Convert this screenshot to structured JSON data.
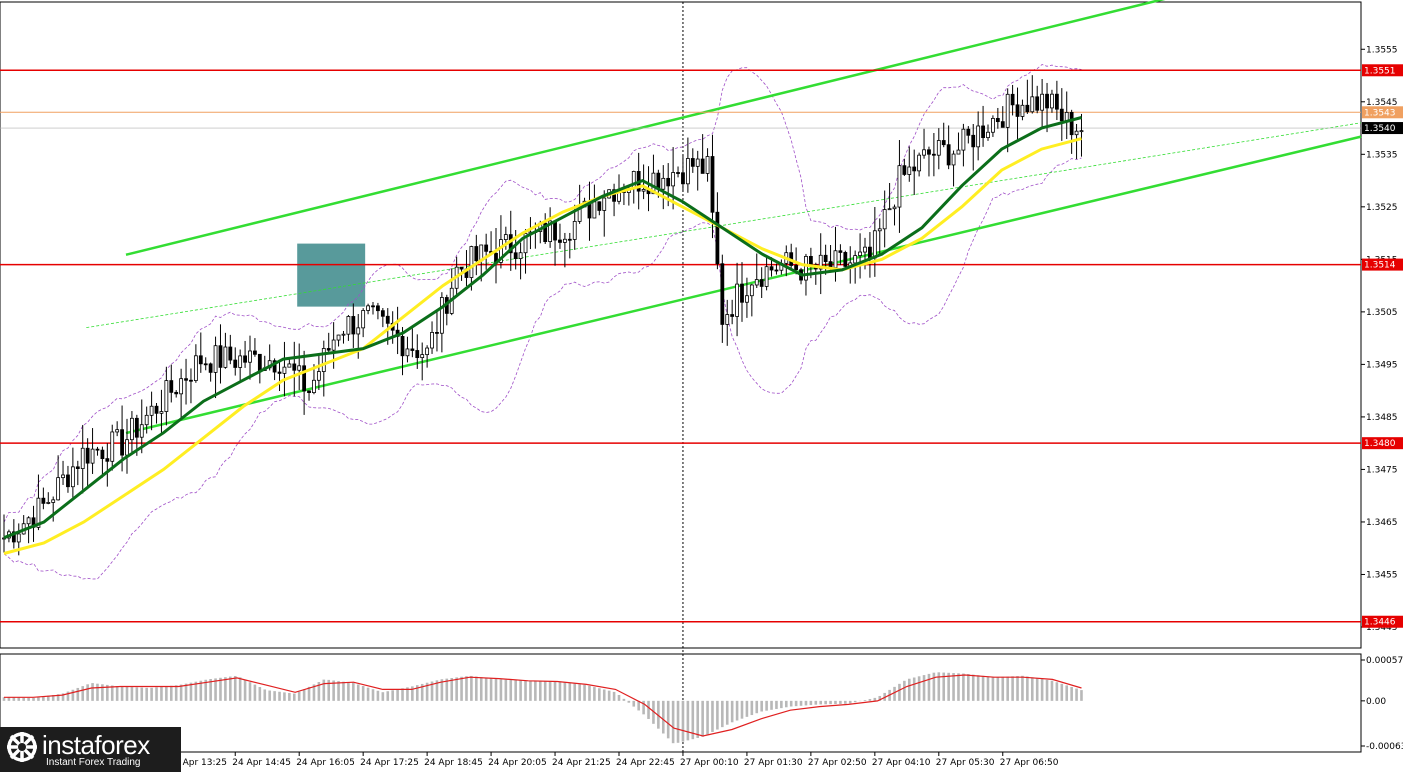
{
  "brand": {
    "name": "instaforex",
    "tagline": "Instant Forex Trading"
  },
  "colors": {
    "level": "#e60000",
    "level_current": "#f0a060",
    "channel": "#33dd33",
    "ema_fast": "#0b6e1a",
    "ema_slow": "#ffee22",
    "bollinger": "#a050c8",
    "histogram": "#b8b8b8",
    "signal": "#e02020",
    "marker": "#4f9596"
  },
  "chart_data": {
    "type": "candlestick",
    "instrument_view": "price chart with levels, trend channel, moving averages, envelopes and oscillator",
    "y_ticks": [
      "1.3555",
      "1.3545",
      "1.3535",
      "1.3525",
      "1.3515",
      "1.3505",
      "1.3495",
      "1.3485",
      "1.3475",
      "1.3465",
      "1.3455",
      "1.3445"
    ],
    "y_range": [
      1.3441,
      1.3564
    ],
    "x_ticks": [
      "24 Apr 13:25",
      "24 Apr 14:45",
      "24 Apr 16:05",
      "24 Apr 17:25",
      "24 Apr 18:45",
      "24 Apr 20:05",
      "24 Apr 21:25",
      "24 Apr 22:45",
      "27 Apr 00:10",
      "27 Apr 01:30",
      "27 Apr 02:50",
      "27 Apr 04:10",
      "27 Apr 05:30",
      "27 Apr 06:50"
    ],
    "levels": [
      {
        "value": 1.3551,
        "label": "1.3551"
      },
      {
        "value": 1.3514,
        "label": "1.3514"
      },
      {
        "value": 1.348,
        "label": "1.3480"
      },
      {
        "value": 1.3446,
        "label": "1.3446"
      }
    ],
    "current_price": {
      "value": 1.354,
      "label": "1.3540"
    },
    "ask_price": {
      "value": 1.3543,
      "label": "1.3543"
    },
    "session_break": "27 Apr 00:10",
    "signal_box": {
      "from": "24 Apr 16:05",
      "to": "24 Apr 17:25",
      "high": 1.3518,
      "low": 1.3506
    },
    "channel_upper": [
      {
        "x": "24 Apr 13:25",
        "y": 1.3518
      },
      {
        "x": "27 Apr 06:50",
        "y": 1.3557
      }
    ],
    "channel_lower": [
      {
        "x": "24 Apr 13:25",
        "y": 1.3484
      },
      {
        "x": "27 Apr 06:50",
        "y": 1.3522
      }
    ],
    "close_path": [
      {
        "i": 0,
        "y": 1.3462
      },
      {
        "i": 8,
        "y": 1.3468
      },
      {
        "i": 16,
        "y": 1.3478
      },
      {
        "i": 24,
        "y": 1.348
      },
      {
        "i": 32,
        "y": 1.3488
      },
      {
        "i": 40,
        "y": 1.3496
      },
      {
        "i": 48,
        "y": 1.3496
      },
      {
        "i": 56,
        "y": 1.3496
      },
      {
        "i": 62,
        "y": 1.349
      },
      {
        "i": 68,
        "y": 1.3502
      },
      {
        "i": 74,
        "y": 1.3504
      },
      {
        "i": 80,
        "y": 1.35
      },
      {
        "i": 86,
        "y": 1.3497
      },
      {
        "i": 92,
        "y": 1.3513
      },
      {
        "i": 98,
        "y": 1.3516
      },
      {
        "i": 104,
        "y": 1.3518
      },
      {
        "i": 110,
        "y": 1.352
      },
      {
        "i": 116,
        "y": 1.3522
      },
      {
        "i": 122,
        "y": 1.3528
      },
      {
        "i": 128,
        "y": 1.353
      },
      {
        "i": 134,
        "y": 1.3531
      },
      {
        "i": 140,
        "y": 1.3533
      },
      {
        "i": 143,
        "y": 1.3532
      },
      {
        "i": 146,
        "y": 1.3504
      },
      {
        "i": 152,
        "y": 1.3512
      },
      {
        "i": 158,
        "y": 1.3514
      },
      {
        "i": 164,
        "y": 1.3513
      },
      {
        "i": 170,
        "y": 1.3514
      },
      {
        "i": 176,
        "y": 1.3515
      },
      {
        "i": 182,
        "y": 1.353
      },
      {
        "i": 188,
        "y": 1.3535
      },
      {
        "i": 194,
        "y": 1.3536
      },
      {
        "i": 200,
        "y": 1.3541
      },
      {
        "i": 206,
        "y": 1.3545
      },
      {
        "i": 212,
        "y": 1.3545
      },
      {
        "i": 216,
        "y": 1.3541
      },
      {
        "i": 219,
        "y": 1.354
      }
    ],
    "ema_fast_path": [
      1.3462,
      1.3465,
      1.3471,
      1.3477,
      1.3482,
      1.3488,
      1.3492,
      1.3496,
      1.3497,
      1.3498,
      1.3501,
      1.3506,
      1.3512,
      1.3519,
      1.3523,
      1.3527,
      1.353,
      1.3526,
      1.3521,
      1.3516,
      1.3512,
      1.3513,
      1.3516,
      1.3521,
      1.3529,
      1.3536,
      1.354,
      1.3542
    ],
    "ema_slow_path": [
      1.3459,
      1.3461,
      1.3465,
      1.347,
      1.3475,
      1.3481,
      1.3487,
      1.3492,
      1.3495,
      1.3498,
      1.3504,
      1.351,
      1.3515,
      1.352,
      1.3524,
      1.3527,
      1.3529,
      1.3525,
      1.3521,
      1.3517,
      1.3514,
      1.3513,
      1.3515,
      1.3519,
      1.3525,
      1.3532,
      1.3536,
      1.3538
    ],
    "oscillator": {
      "y_ticks": [
        "0.00057",
        "0.00",
        "-0.00063"
      ],
      "y_range": [
        -0.00063,
        0.00057
      ],
      "histogram_path": [
        5e-05,
        4e-05,
        0.0001,
        0.00025,
        0.0002,
        0.00018,
        0.00022,
        0.0003,
        0.00035,
        0.00015,
        0.0001,
        0.0003,
        0.00025,
        0.00012,
        0.0002,
        0.0003,
        0.00035,
        0.0003,
        0.00028,
        0.00027,
        0.00022,
        0.00012,
        -0.0002,
        -0.0006,
        -0.0005,
        -0.0003,
        -0.00015,
        -8e-05,
        -5e-05,
        -4e-05,
        5e-05,
        0.0003,
        0.0004,
        0.00038,
        0.00033,
        0.00035,
        0.00028,
        0.00015
      ],
      "signal_path": [
        5e-05,
        5e-05,
        8e-05,
        0.00018,
        0.0002,
        0.0002,
        0.0002,
        0.00026,
        0.00032,
        0.00022,
        0.00012,
        0.00024,
        0.00026,
        0.00016,
        0.00016,
        0.00026,
        0.00033,
        0.00031,
        0.00028,
        0.00027,
        0.00023,
        0.00016,
        -5e-05,
        -0.00038,
        -0.00049,
        -0.0004,
        -0.00025,
        -0.00013,
        -8e-05,
        -5e-05,
        0.0,
        0.0002,
        0.00033,
        0.00036,
        0.00033,
        0.00033,
        0.0003,
        0.00018
      ]
    }
  }
}
